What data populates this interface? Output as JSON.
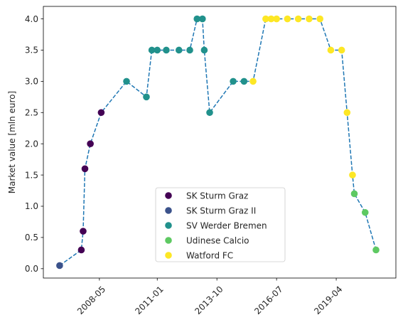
{
  "chart_data": {
    "type": "scatter",
    "title": "",
    "xlabel": "",
    "ylabel": "Market value [mln euro]",
    "x_ticks": [
      "2008-05",
      "2011-01",
      "2013-10",
      "2016-07",
      "2019-04"
    ],
    "y_ticks": [
      "0.0",
      "0.5",
      "1.0",
      "1.5",
      "2.0",
      "2.5",
      "3.0",
      "3.5",
      "4.0"
    ],
    "xlim": [
      "2005-10",
      "2022-01"
    ],
    "ylim": [
      -0.15,
      4.2
    ],
    "grid": false,
    "line_style": "dashed",
    "line_color": "#1f77b4",
    "legend_position": "bottom-center",
    "series": [
      {
        "name": "SK Sturm Graz",
        "color": "#440154",
        "points": [
          [
            "2007-07",
            0.3
          ],
          [
            "2007-08",
            0.6
          ],
          [
            "2007-09",
            1.6
          ],
          [
            "2007-12",
            2.0
          ],
          [
            "2008-06",
            2.5
          ]
        ]
      },
      {
        "name": "SK Sturm Graz II",
        "color": "#3b528b",
        "points": [
          [
            "2006-07",
            0.05
          ]
        ]
      },
      {
        "name": "SV Werder Bremen",
        "color": "#21918c",
        "points": [
          [
            "2009-08",
            3.0
          ],
          [
            "2010-07",
            2.75
          ],
          [
            "2010-10",
            3.5
          ],
          [
            "2011-01",
            3.5
          ],
          [
            "2011-06",
            3.5
          ],
          [
            "2012-01",
            3.5
          ],
          [
            "2012-07",
            3.5
          ],
          [
            "2012-11",
            4.0
          ],
          [
            "2013-02",
            4.0
          ],
          [
            "2013-03",
            3.5
          ],
          [
            "2013-06",
            2.5
          ],
          [
            "2014-07",
            3.0
          ],
          [
            "2015-01",
            3.0
          ]
        ]
      },
      {
        "name": "Udinese Calcio",
        "color": "#5ec962",
        "points": [
          [
            "2020-02",
            1.2
          ],
          [
            "2020-08",
            0.9
          ],
          [
            "2021-02",
            0.3
          ]
        ]
      },
      {
        "name": "Watford FC",
        "color": "#fde725",
        "points": [
          [
            "2015-06",
            3.0
          ],
          [
            "2016-01",
            4.0
          ],
          [
            "2016-04",
            4.0
          ],
          [
            "2016-07",
            4.0
          ],
          [
            "2017-01",
            4.0
          ],
          [
            "2017-07",
            4.0
          ],
          [
            "2018-01",
            4.0
          ],
          [
            "2018-07",
            4.0
          ],
          [
            "2019-01",
            3.5
          ],
          [
            "2019-07",
            3.5
          ],
          [
            "2019-10",
            2.5
          ],
          [
            "2020-01",
            1.5
          ]
        ]
      }
    ]
  }
}
